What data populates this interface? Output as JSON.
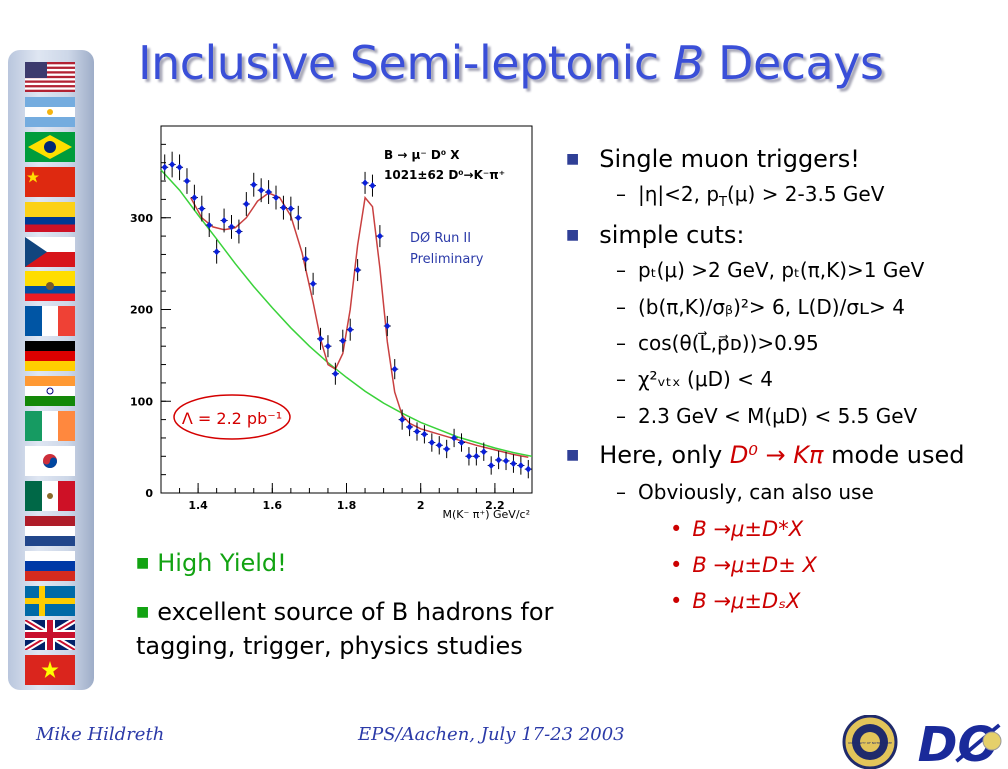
{
  "title": {
    "main": "Inclusive Semi-leptonic ",
    "italic": "B",
    "end": " Decays"
  },
  "flags": [
    "usa-flag",
    "argentina-flag",
    "brazil-flag",
    "china-flag",
    "colombia-flag",
    "czech-flag",
    "ecuador-flag",
    "france-flag",
    "germany-flag",
    "india-flag",
    "ireland-flag",
    "korea-flag",
    "mexico-flag",
    "netherlands-flag",
    "russia-flag",
    "sweden-flag",
    "uk-flag",
    "vietnam-flag"
  ],
  "chart_data": {
    "type": "scatter",
    "title": "",
    "xlabel": "M(K⁻ π⁺) GeV/c²",
    "ylabel": "",
    "xlim": [
      1.3,
      2.3
    ],
    "ylim": [
      0,
      400
    ],
    "xticks": [
      1.4,
      1.6,
      1.8,
      2,
      2.2
    ],
    "xticklabels": [
      "1.4",
      "1.6",
      "1.8",
      "2",
      "2.2"
    ],
    "yticks": [
      0,
      100,
      200,
      300
    ],
    "yticklabels": [
      "0",
      "100",
      "200",
      "300"
    ],
    "annotation_decay": "B → μ⁻ D⁰ X",
    "annotation_yield": "1021±62  D⁰→K⁻π⁺",
    "annotation_run": [
      "DØ Run II",
      "Preliminary"
    ],
    "annotation_lumi": "Λ = 2.2 pb⁻¹",
    "series": [
      {
        "points": [
          {
            "x": 1.31,
            "y": 355,
            "err": 14
          },
          {
            "x": 1.33,
            "y": 358,
            "err": 14
          },
          {
            "x": 1.35,
            "y": 355,
            "err": 14
          },
          {
            "x": 1.37,
            "y": 340,
            "err": 14
          },
          {
            "x": 1.39,
            "y": 322,
            "err": 14
          },
          {
            "x": 1.41,
            "y": 310,
            "err": 14
          },
          {
            "x": 1.43,
            "y": 292,
            "err": 13
          },
          {
            "x": 1.45,
            "y": 263,
            "err": 13
          },
          {
            "x": 1.47,
            "y": 297,
            "err": 13
          },
          {
            "x": 1.49,
            "y": 290,
            "err": 13
          },
          {
            "x": 1.51,
            "y": 285,
            "err": 13
          },
          {
            "x": 1.53,
            "y": 315,
            "err": 13
          },
          {
            "x": 1.55,
            "y": 336,
            "err": 13
          },
          {
            "x": 1.57,
            "y": 330,
            "err": 13
          },
          {
            "x": 1.59,
            "y": 328,
            "err": 13
          },
          {
            "x": 1.61,
            "y": 322,
            "err": 13
          },
          {
            "x": 1.63,
            "y": 311,
            "err": 13
          },
          {
            "x": 1.65,
            "y": 310,
            "err": 13
          },
          {
            "x": 1.67,
            "y": 300,
            "err": 13
          },
          {
            "x": 1.69,
            "y": 255,
            "err": 13
          },
          {
            "x": 1.71,
            "y": 228,
            "err": 12
          },
          {
            "x": 1.73,
            "y": 168,
            "err": 12
          },
          {
            "x": 1.75,
            "y": 160,
            "err": 12
          },
          {
            "x": 1.77,
            "y": 130,
            "err": 12
          },
          {
            "x": 1.79,
            "y": 166,
            "err": 12
          },
          {
            "x": 1.81,
            "y": 178,
            "err": 12
          },
          {
            "x": 1.83,
            "y": 243,
            "err": 12
          },
          {
            "x": 1.85,
            "y": 338,
            "err": 12
          },
          {
            "x": 1.87,
            "y": 335,
            "err": 12
          },
          {
            "x": 1.89,
            "y": 280,
            "err": 12
          },
          {
            "x": 1.91,
            "y": 182,
            "err": 11
          },
          {
            "x": 1.93,
            "y": 135,
            "err": 11
          },
          {
            "x": 1.95,
            "y": 80,
            "err": 11
          },
          {
            "x": 1.97,
            "y": 72,
            "err": 10
          },
          {
            "x": 1.99,
            "y": 67,
            "err": 10
          },
          {
            "x": 2.01,
            "y": 64,
            "err": 10
          },
          {
            "x": 2.03,
            "y": 55,
            "err": 10
          },
          {
            "x": 2.05,
            "y": 52,
            "err": 10
          },
          {
            "x": 2.07,
            "y": 48,
            "err": 10
          },
          {
            "x": 2.09,
            "y": 60,
            "err": 10
          },
          {
            "x": 2.11,
            "y": 55,
            "err": 10
          },
          {
            "x": 2.13,
            "y": 40,
            "err": 10
          },
          {
            "x": 2.15,
            "y": 40,
            "err": 10
          },
          {
            "x": 2.17,
            "y": 45,
            "err": 10
          },
          {
            "x": 2.19,
            "y": 30,
            "err": 10
          },
          {
            "x": 2.21,
            "y": 36,
            "err": 10
          },
          {
            "x": 2.23,
            "y": 35,
            "err": 10
          },
          {
            "x": 2.25,
            "y": 32,
            "err": 10
          },
          {
            "x": 2.27,
            "y": 30,
            "err": 10
          },
          {
            "x": 2.29,
            "y": 26,
            "err": 10
          }
        ]
      }
    ],
    "background_fit": [
      {
        "x": 1.3,
        "y": 352
      },
      {
        "x": 1.35,
        "y": 330
      },
      {
        "x": 1.4,
        "y": 303
      },
      {
        "x": 1.45,
        "y": 277
      },
      {
        "x": 1.5,
        "y": 250
      },
      {
        "x": 1.55,
        "y": 225
      },
      {
        "x": 1.6,
        "y": 202
      },
      {
        "x": 1.65,
        "y": 180
      },
      {
        "x": 1.7,
        "y": 160
      },
      {
        "x": 1.75,
        "y": 142
      },
      {
        "x": 1.8,
        "y": 126
      },
      {
        "x": 1.85,
        "y": 111
      },
      {
        "x": 1.9,
        "y": 98
      },
      {
        "x": 1.95,
        "y": 87
      },
      {
        "x": 2.0,
        "y": 77
      },
      {
        "x": 2.05,
        "y": 69
      },
      {
        "x": 2.1,
        "y": 61
      },
      {
        "x": 2.15,
        "y": 55
      },
      {
        "x": 2.2,
        "y": 49
      },
      {
        "x": 2.25,
        "y": 44
      },
      {
        "x": 2.3,
        "y": 40
      }
    ],
    "total_fit": [
      {
        "x": 1.38,
        "y": 322
      },
      {
        "x": 1.41,
        "y": 300
      },
      {
        "x": 1.44,
        "y": 290
      },
      {
        "x": 1.47,
        "y": 287
      },
      {
        "x": 1.5,
        "y": 289
      },
      {
        "x": 1.53,
        "y": 300
      },
      {
        "x": 1.56,
        "y": 318
      },
      {
        "x": 1.59,
        "y": 327
      },
      {
        "x": 1.62,
        "y": 322
      },
      {
        "x": 1.65,
        "y": 302
      },
      {
        "x": 1.68,
        "y": 262
      },
      {
        "x": 1.71,
        "y": 208
      },
      {
        "x": 1.73,
        "y": 168
      },
      {
        "x": 1.75,
        "y": 140
      },
      {
        "x": 1.77,
        "y": 135
      },
      {
        "x": 1.79,
        "y": 152
      },
      {
        "x": 1.81,
        "y": 200
      },
      {
        "x": 1.83,
        "y": 270
      },
      {
        "x": 1.85,
        "y": 322
      },
      {
        "x": 1.87,
        "y": 312
      },
      {
        "x": 1.89,
        "y": 245
      },
      {
        "x": 1.91,
        "y": 165
      },
      {
        "x": 1.93,
        "y": 110
      },
      {
        "x": 1.95,
        "y": 85
      },
      {
        "x": 1.97,
        "y": 76
      },
      {
        "x": 2.0,
        "y": 70
      },
      {
        "x": 2.05,
        "y": 64
      },
      {
        "x": 2.1,
        "y": 58
      },
      {
        "x": 2.15,
        "y": 52
      },
      {
        "x": 2.2,
        "y": 47
      },
      {
        "x": 2.25,
        "y": 42
      },
      {
        "x": 2.29,
        "y": 39
      }
    ],
    "colors": {
      "points": "#0a1fd8",
      "total_fit": "#c94040",
      "background_fit": "#3ad23a",
      "lumi": "#d40000"
    }
  },
  "right": {
    "b1": "Single muon triggers!",
    "b1_sub_prefix": "|η|<2, p",
    "b1_sub_T": "T",
    "b1_sub_suffix": "(μ) > 2-3.5 GeV",
    "b2": "simple cuts:",
    "c1": "pₜ(μ) >2 GeV, pₜ(π,K)>1 GeV",
    "c2": "(b(π,K)/σᵦ)²> 6, L(D)/σʟ> 4",
    "c3": "cos(θ(L⃗,p⃗ᴅ))>0.95",
    "c4": "χ²ᵥₜₓ (μD) < 4",
    "c5": "2.3 GeV < M(μD) < 5.5 GeV",
    "b3_prefix": "Here, only ",
    "b3_mode": "D⁰ → Kπ",
    "b3_suffix": " mode used",
    "d1": "Obviously, can also use",
    "e1": "B →μ±D*X",
    "e2": "B →μ±D± X",
    "e3": "B →μ±DₛX"
  },
  "left_bullets": {
    "b1": "High Yield!",
    "b2_line1": "excellent source of B hadrons for",
    "b2_line2": "tagging, trigger, physics studies"
  },
  "footer": {
    "author": "Mike Hildreth",
    "event": "EPS/Aachen, July 17-23 2003",
    "seal_text": "UNIVERSITY OF NOTRE DAME",
    "logo_text": "DØ"
  }
}
